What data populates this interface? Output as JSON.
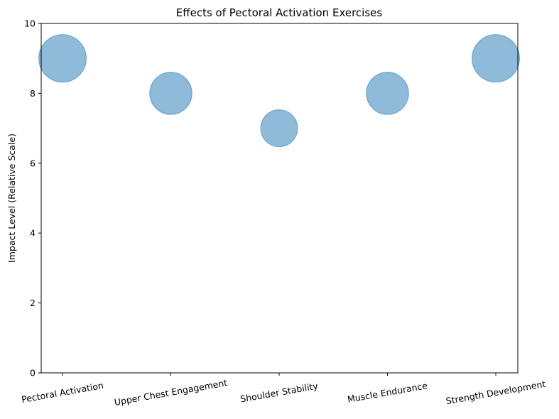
{
  "chart_data": {
    "type": "scatter",
    "title": "Effects of Pectoral Activation Exercises",
    "xlabel": "",
    "ylabel": "Impact Level (Relative Scale)",
    "categories": [
      "Pectoral Activation",
      "Upper Chest Engagement",
      "Shoulder Stability",
      "Muscle Endurance",
      "Strength Development"
    ],
    "values": [
      9,
      8,
      7,
      8,
      9
    ],
    "bubble_sizes": [
      9,
      8,
      7,
      8,
      9
    ],
    "ylim": [
      0,
      10
    ],
    "yticks": [
      "0",
      "2",
      "4",
      "6",
      "8",
      "10"
    ],
    "grid": false,
    "legend": "none",
    "marker_color": "#1f77b4",
    "marker_alpha": 0.5
  }
}
